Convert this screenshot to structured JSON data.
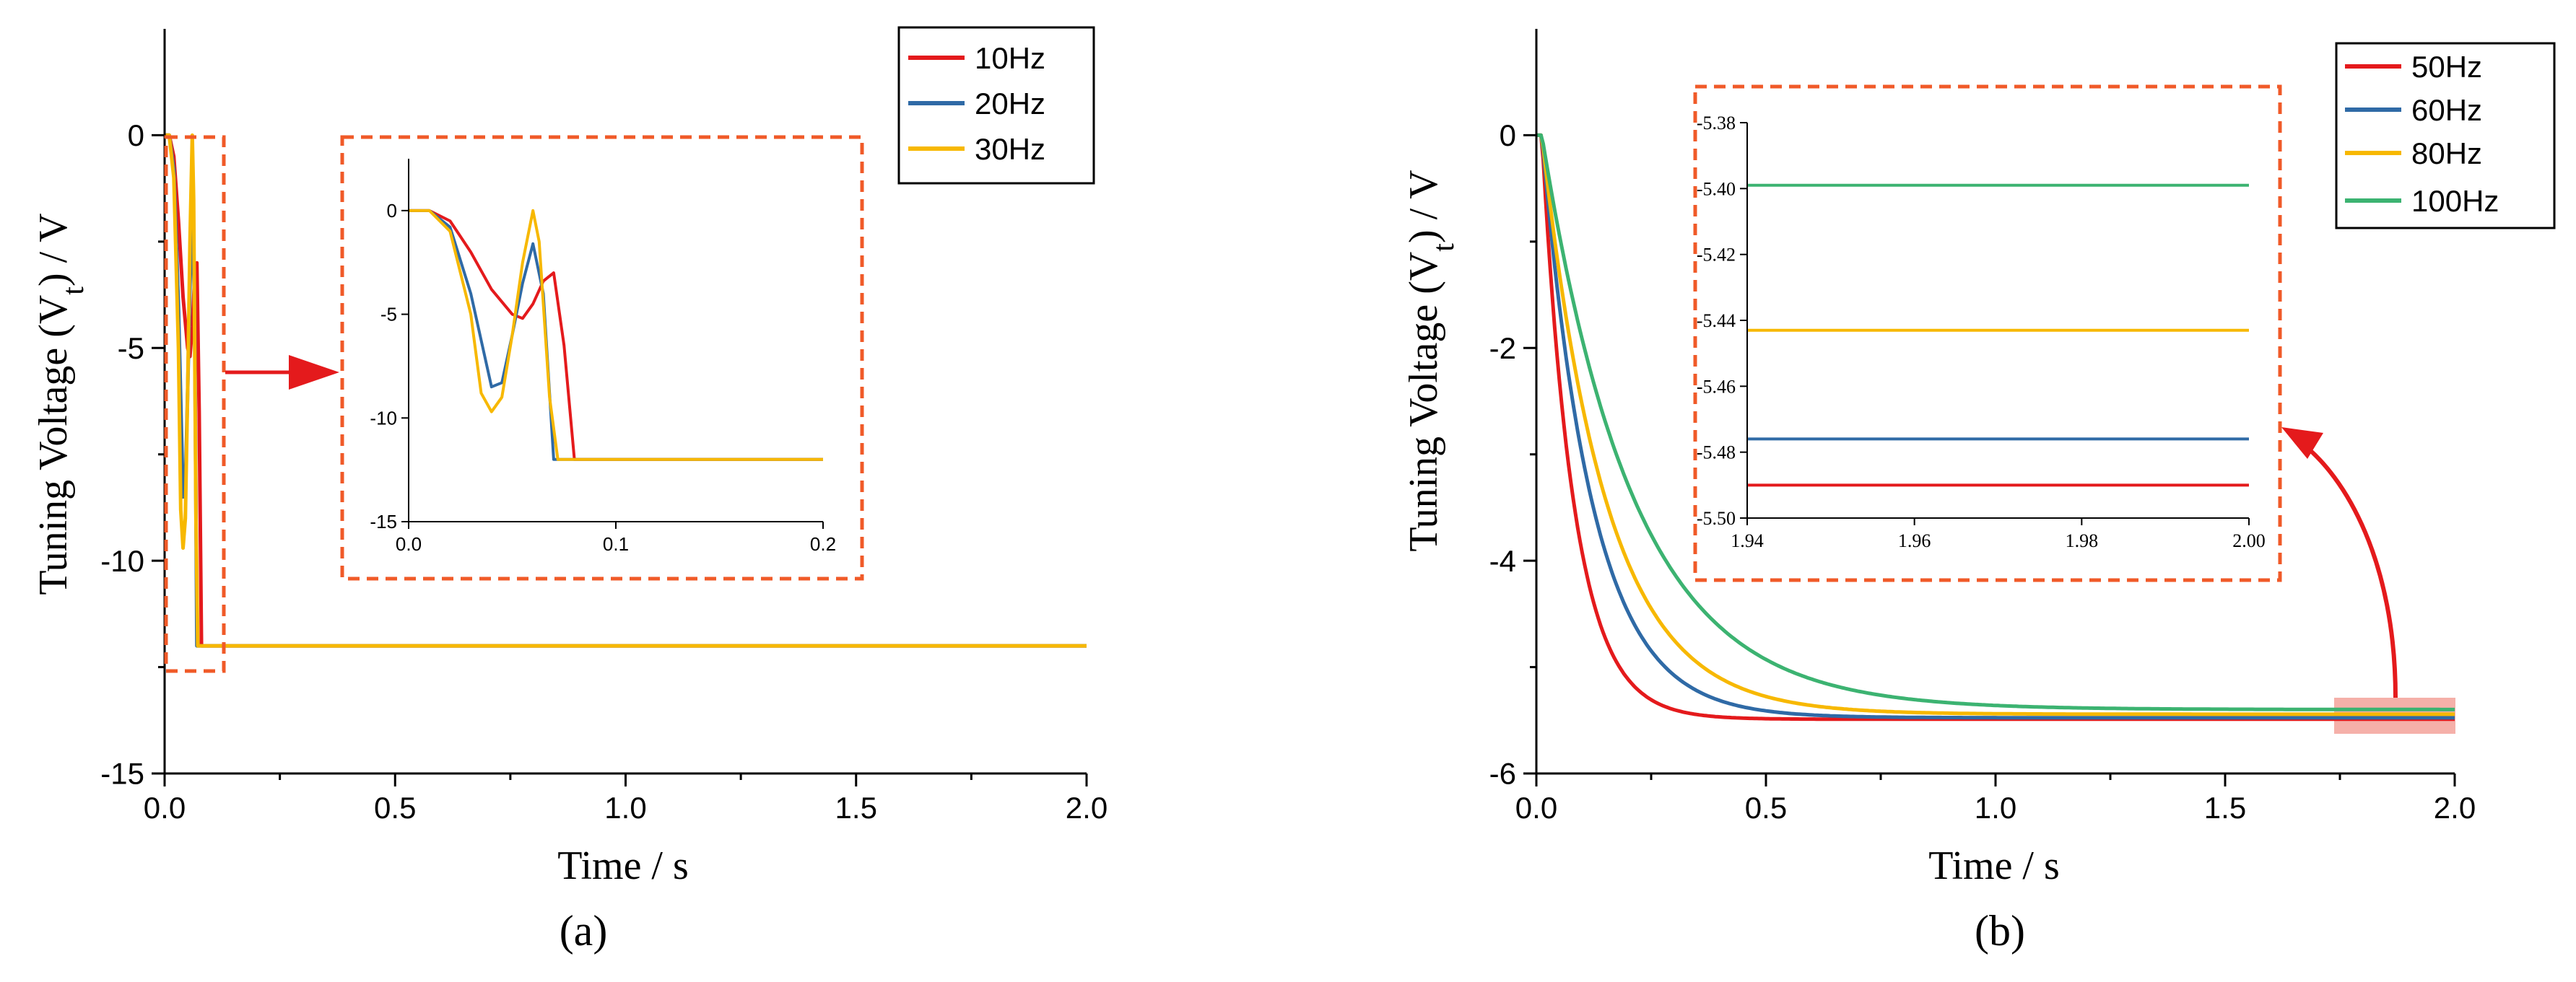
{
  "chart_data": [
    {
      "type": "line",
      "panel_label": "(a)",
      "xlabel": "Time / s",
      "ylabel_main": "Tuning Voltage (V",
      "ylabel_sub": "t",
      "ylabel_tail": ") / V",
      "xlim": [
        0,
        2.0
      ],
      "ylim": [
        -15,
        2.5
      ],
      "xticks": [
        0,
        0.5,
        1.0,
        1.5,
        2.0
      ],
      "xtick_labels": [
        "0.0",
        "0.5",
        "1.0",
        "1.5",
        "2.0"
      ],
      "yticks": [
        0,
        -5,
        -10,
        -15
      ],
      "ytick_labels": [
        "0",
        "-5",
        "-10",
        "-15"
      ],
      "legend_position": "top-right",
      "series": [
        {
          "name": "10Hz",
          "color": "#e41a1c",
          "points": [
            [
              0,
              0
            ],
            [
              0.01,
              0
            ],
            [
              0.02,
              -0.5
            ],
            [
              0.03,
              -2.0
            ],
            [
              0.04,
              -3.8
            ],
            [
              0.05,
              -5.0
            ],
            [
              0.055,
              -5.2
            ],
            [
              0.06,
              -4.5
            ],
            [
              0.065,
              -3.4
            ],
            [
              0.07,
              -3.0
            ],
            [
              0.075,
              -6.5
            ],
            [
              0.08,
              -12.0
            ],
            [
              2.0,
              -12.0
            ]
          ]
        },
        {
          "name": "20Hz",
          "color": "#2f6aa6",
          "points": [
            [
              0,
              0
            ],
            [
              0.01,
              0
            ],
            [
              0.02,
              -0.8
            ],
            [
              0.03,
              -4.0
            ],
            [
              0.04,
              -8.5
            ],
            [
              0.045,
              -8.3
            ],
            [
              0.05,
              -6.0
            ],
            [
              0.055,
              -3.5
            ],
            [
              0.06,
              -1.6
            ],
            [
              0.065,
              -4.0
            ],
            [
              0.07,
              -12.0
            ],
            [
              2.0,
              -12.0
            ]
          ]
        },
        {
          "name": "30Hz",
          "color": "#f7b800",
          "points": [
            [
              0,
              0
            ],
            [
              0.01,
              0
            ],
            [
              0.02,
              -1.0
            ],
            [
              0.03,
              -5.0
            ],
            [
              0.035,
              -8.8
            ],
            [
              0.04,
              -9.7
            ],
            [
              0.045,
              -9.0
            ],
            [
              0.05,
              -6.0
            ],
            [
              0.055,
              -2.5
            ],
            [
              0.06,
              0
            ],
            [
              0.063,
              -1.5
            ],
            [
              0.068,
              -9.0
            ],
            [
              0.072,
              -12.0
            ],
            [
              2.0,
              -12.0
            ]
          ]
        }
      ],
      "inset": {
        "xlim": [
          0,
          0.2
        ],
        "ylim": [
          -15,
          2.5
        ],
        "xticks": [
          0,
          0.1,
          0.2
        ],
        "xtick_labels": [
          "0.0",
          "0.1",
          "0.2"
        ],
        "yticks": [
          0,
          -5,
          -10,
          -15
        ],
        "ytick_labels": [
          "0",
          "-5",
          "-10",
          "-15"
        ]
      }
    },
    {
      "type": "line",
      "panel_label": "(b)",
      "xlabel": "Time / s",
      "ylabel_main": "Tuning Voltage (V",
      "ylabel_sub": "t",
      "ylabel_tail": ") / V",
      "xlim": [
        0,
        2.0
      ],
      "ylim": [
        -6,
        1
      ],
      "xticks": [
        0,
        0.5,
        1.0,
        1.5,
        2.0
      ],
      "xtick_labels": [
        "0.0",
        "0.5",
        "1.0",
        "1.5",
        "2.0"
      ],
      "yticks": [
        0,
        -2,
        -4,
        -6
      ],
      "ytick_labels": [
        "0",
        "-2",
        "-4",
        "-6"
      ],
      "legend_position": "top-right",
      "series": [
        {
          "name": "50Hz",
          "color": "#e41a1c",
          "final": -5.49,
          "tau": 0.07
        },
        {
          "name": "60Hz",
          "color": "#2f6aa6",
          "final": -5.476,
          "tau": 0.11
        },
        {
          "name": "80Hz",
          "color": "#f7b800",
          "final": -5.443,
          "tau": 0.14
        },
        {
          "name": "100Hz",
          "color": "#3cb371",
          "final": -5.399,
          "tau": 0.2
        }
      ],
      "inset": {
        "xlim": [
          1.94,
          2.0
        ],
        "ylim": [
          -5.5,
          -5.38
        ],
        "xticks": [
          1.94,
          1.96,
          1.98,
          2.0
        ],
        "xtick_labels": [
          "1.94",
          "1.96",
          "1.98",
          "2.00"
        ],
        "yticks": [
          -5.38,
          -5.4,
          -5.42,
          -5.44,
          -5.46,
          -5.48,
          -5.5
        ],
        "ytick_labels": [
          "-5.38",
          "-5.40",
          "-5.42",
          "-5.44",
          "-5.46",
          "-5.48",
          "-5.50"
        ]
      }
    }
  ]
}
